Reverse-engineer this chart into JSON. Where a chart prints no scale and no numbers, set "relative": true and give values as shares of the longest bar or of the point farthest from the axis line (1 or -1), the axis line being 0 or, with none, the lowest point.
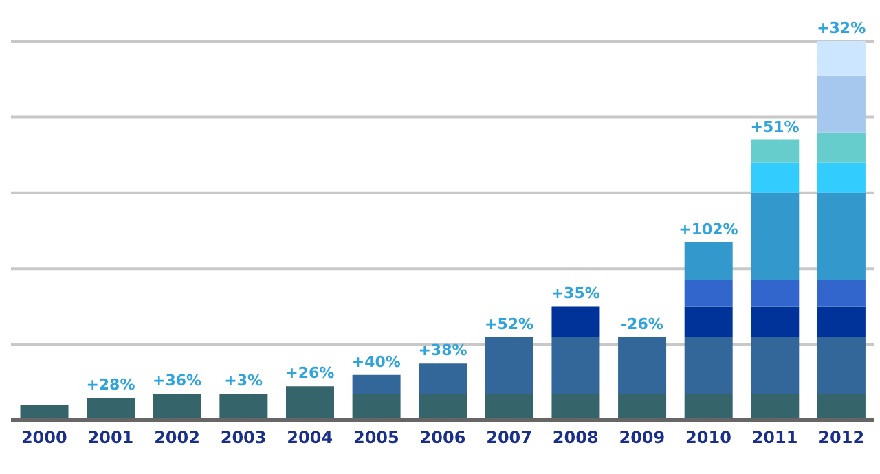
{
  "chart_data": {
    "type": "bar",
    "stacked": true,
    "relative": true,
    "grid": "y",
    "legend": false,
    "categories": [
      "2000",
      "2001",
      "2002",
      "2003",
      "2004",
      "2005",
      "2006",
      "2007",
      "2008",
      "2009",
      "2010",
      "2011",
      "2012"
    ],
    "series": [
      {
        "color": "#35646a",
        "values": [
          0.04,
          0.06,
          0.07,
          0.07,
          0.09,
          0.07,
          0.07,
          0.07,
          0.07,
          0.07,
          0.07,
          0.07,
          0.07
        ]
      },
      {
        "color": "#336699",
        "values": [
          null,
          null,
          null,
          null,
          null,
          0.05,
          0.08,
          0.15,
          0.15,
          0.15,
          0.15,
          0.15,
          0.15
        ]
      },
      {
        "color": "#003399",
        "values": [
          null,
          null,
          null,
          null,
          null,
          null,
          null,
          null,
          0.08,
          null,
          0.08,
          0.08,
          0.08
        ]
      },
      {
        "color": "#3366cc",
        "values": [
          null,
          null,
          null,
          null,
          null,
          null,
          null,
          null,
          null,
          null,
          0.07,
          0.07,
          0.07
        ]
      },
      {
        "color": "#3399cc",
        "values": [
          null,
          null,
          null,
          null,
          null,
          null,
          null,
          null,
          null,
          null,
          0.1,
          0.23,
          0.23
        ]
      },
      {
        "color": "#33ccff",
        "values": [
          null,
          null,
          null,
          null,
          null,
          null,
          null,
          null,
          null,
          null,
          null,
          0.08,
          0.08
        ]
      },
      {
        "color": "#66cccc",
        "values": [
          null,
          null,
          null,
          null,
          null,
          null,
          null,
          null,
          null,
          null,
          null,
          0.06,
          0.08
        ]
      },
      {
        "color": "#a6c8ee",
        "values": [
          null,
          null,
          null,
          null,
          null,
          null,
          null,
          null,
          null,
          null,
          null,
          null,
          0.15
        ]
      },
      {
        "color": "#cce6ff",
        "values": [
          null,
          null,
          null,
          null,
          null,
          null,
          null,
          null,
          null,
          null,
          null,
          null,
          0.09
        ]
      }
    ],
    "annotations": [
      {
        "text": "+28%",
        "x": "2001",
        "y": 0.06
      },
      {
        "text": "+36%",
        "x": "2002",
        "y": 0.07
      },
      {
        "text": "+3%",
        "x": "2003",
        "y": 0.07
      },
      {
        "text": "+26%",
        "x": "2004",
        "y": 0.09
      },
      {
        "text": "+40%",
        "x": "2005",
        "y": 0.12
      },
      {
        "text": "+38%",
        "x": "2006",
        "y": 0.15
      },
      {
        "text": "+52%",
        "x": "2007",
        "y": 0.22
      },
      {
        "text": "+35%",
        "x": "2008",
        "y": 0.3
      },
      {
        "text": "-26%",
        "x": "2009",
        "y": 0.22
      },
      {
        "text": "+102%",
        "x": "2010",
        "y": 0.47
      },
      {
        "text": "+51%",
        "x": "2011",
        "y": 0.74
      },
      {
        "text": "+32%",
        "x": "2012",
        "y": 1
      }
    ]
  }
}
